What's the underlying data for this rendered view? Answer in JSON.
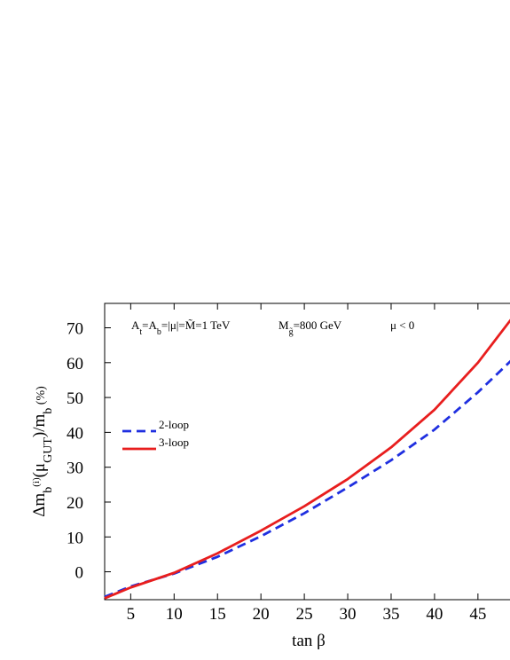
{
  "chart_data": {
    "type": "line",
    "title": "",
    "xlabel": "tan β",
    "ylabel": "Δm_b^(i)(μ_GUT)/m_b (%)",
    "xlim": [
      2,
      49
    ],
    "ylim": [
      -8,
      77
    ],
    "xticks": [
      5,
      10,
      15,
      20,
      25,
      30,
      35,
      40,
      45
    ],
    "yticks": [
      0,
      10,
      20,
      30,
      40,
      50,
      60,
      70
    ],
    "grid": false,
    "legend_position": "left",
    "annotations": [
      {
        "id": "params",
        "text": "A_t=A_b=|μ|=M̃=1 TeV"
      },
      {
        "id": "gluino",
        "text": "M_g̃=800 GeV"
      },
      {
        "id": "sign",
        "text": "μ < 0"
      }
    ],
    "series": [
      {
        "name": "2-loop",
        "color": "#1f2fe0",
        "dash": "dashed",
        "x": [
          2,
          5,
          10,
          15,
          20,
          25,
          30,
          35,
          40,
          45,
          49
        ],
        "y": [
          -7.2,
          -4.2,
          -0.5,
          4.3,
          10.2,
          16.8,
          24.2,
          32.0,
          40.8,
          51.5,
          61.0
        ]
      },
      {
        "name": "3-loop",
        "color": "#e81e1e",
        "dash": "solid",
        "x": [
          2,
          5,
          10,
          15,
          20,
          25,
          30,
          35,
          40,
          45,
          49
        ],
        "y": [
          -7.6,
          -4.5,
          -0.3,
          5.3,
          11.8,
          18.8,
          26.6,
          35.7,
          46.5,
          60.0,
          73.0
        ]
      }
    ]
  }
}
